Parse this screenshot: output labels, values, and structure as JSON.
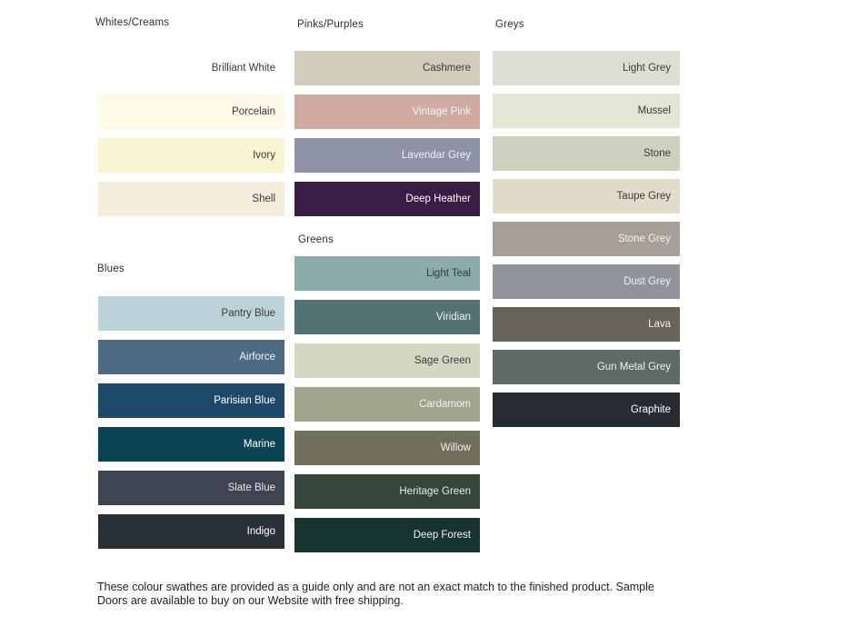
{
  "groups": [
    {
      "heading": "Whites/Creams",
      "swatches": [
        {
          "name": "Brilliant White",
          "color": "#ffffff",
          "label_color": "#3a3a3a"
        },
        {
          "name": "Porcelain",
          "color": "#fdfae8",
          "label_color": "#3a3a3a"
        },
        {
          "name": "Ivory",
          "color": "#faf4d3",
          "label_color": "#3a3a3a"
        },
        {
          "name": "Shell",
          "color": "#f6ecdc",
          "label_color": "#3a3a3a"
        }
      ]
    },
    {
      "heading": "Blues",
      "swatches": [
        {
          "name": "Pantry Blue",
          "color": "#bcd2d9",
          "label_color": "#3a3a3a"
        },
        {
          "name": "Airforce",
          "color": "#4c6b82",
          "label_color": "#f2f5f7"
        },
        {
          "name": "Parisian Blue",
          "color": "#1c4967",
          "label_color": "#ffffff"
        },
        {
          "name": "Marine",
          "color": "#0b4354",
          "label_color": "#ffffff"
        },
        {
          "name": "Slate Blue",
          "color": "#3e4450",
          "label_color": "#e8e9eb"
        },
        {
          "name": "Indigo",
          "color": "#2a3038",
          "label_color": "#ffffff"
        }
      ]
    },
    {
      "heading": "Pinks/Purples",
      "swatches": [
        {
          "name": "Cashmere",
          "color": "#d2ccbc",
          "label_color": "#3a3a3a"
        },
        {
          "name": "Vintage Pink",
          "color": "#cfaaa3",
          "label_color": "#f7f2f1"
        },
        {
          "name": "Lavendar Grey",
          "color": "#8d93a5",
          "label_color": "#f0f1f4"
        },
        {
          "name": "Deep Heather",
          "color": "#3a1d42",
          "label_color": "#ffffff"
        }
      ]
    },
    {
      "heading": "Greens",
      "swatches": [
        {
          "name": "Light Teal",
          "color": "#8cabaa",
          "label_color": "#2f3a3a"
        },
        {
          "name": "Viridian",
          "color": "#537072",
          "label_color": "#f0f4f4"
        },
        {
          "name": "Sage Green",
          "color": "#d3d8c3",
          "label_color": "#3a3a3a"
        },
        {
          "name": "Cardamom",
          "color": "#9fa68b",
          "label_color": "#f4f5f0"
        },
        {
          "name": "Willow",
          "color": "#70705d",
          "label_color": "#f2f2ee"
        },
        {
          "name": "Heritage Green",
          "color": "#344539",
          "label_color": "#e8ebe8"
        },
        {
          "name": "Deep Forest",
          "color": "#17352e",
          "label_color": "#f0f3f2"
        }
      ]
    },
    {
      "heading": "Greys",
      "swatches": [
        {
          "name": "Light Grey",
          "color": "#dedfd2",
          "label_color": "#3a3a3a"
        },
        {
          "name": "Mussel",
          "color": "#e4e5d5",
          "label_color": "#3a3a3a"
        },
        {
          "name": "Stone",
          "color": "#ced1bf",
          "label_color": "#3a3a3a"
        },
        {
          "name": "Taupe Grey",
          "color": "#e2dbc9",
          "label_color": "#3a3a3a"
        },
        {
          "name": "Stone Grey",
          "color": "#a59f97",
          "label_color": "#f5f4f3"
        },
        {
          "name": "Dust Grey",
          "color": "#90939b",
          "label_color": "#f2f2f4"
        },
        {
          "name": "Lava",
          "color": "#666459",
          "label_color": "#efeeec"
        },
        {
          "name": "Gun Metal Grey",
          "color": "#5d6a67",
          "label_color": "#f0f2f2"
        },
        {
          "name": "Graphite",
          "color": "#272b32",
          "label_color": "#ffffff"
        }
      ]
    }
  ],
  "footer": {
    "text": "These colour swathes are provided as a guide only and are not an exact match to the finished product.  Sample Doors are available to buy on our Website with free shipping."
  }
}
